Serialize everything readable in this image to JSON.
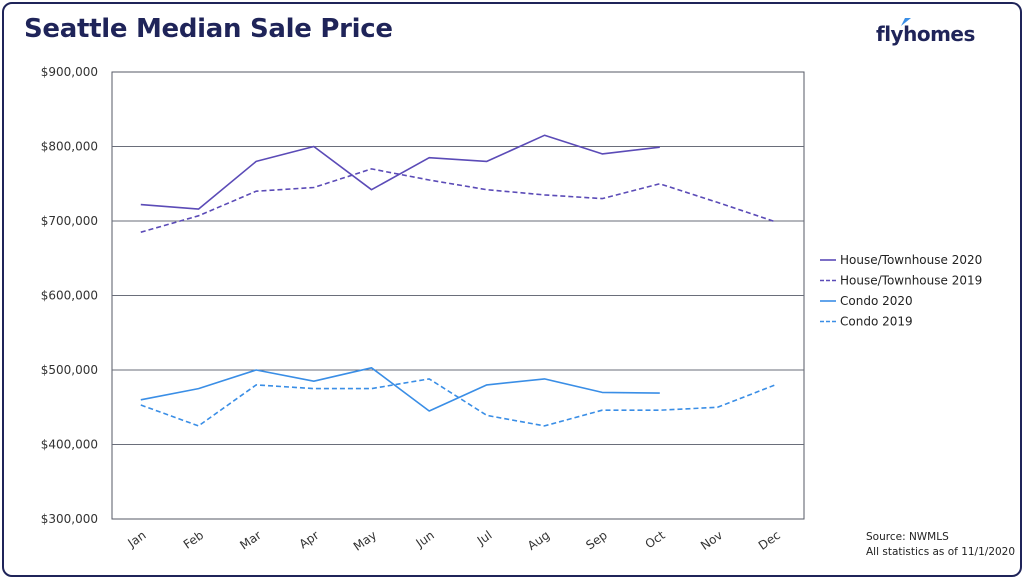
{
  "title": "Seattle Median Sale Price",
  "brand": {
    "name": "flyhomes",
    "color": "#1f2459",
    "accent": "#3a8ee6"
  },
  "footer": {
    "source": "Source: NWMLS",
    "note": "All statistics as of 11/1/2020"
  },
  "chart_data": {
    "type": "line",
    "title": "Seattle Median Sale Price",
    "xlabel": "",
    "ylabel": "",
    "categories": [
      "Jan",
      "Feb",
      "Mar",
      "Apr",
      "May",
      "Jun",
      "Jul",
      "Aug",
      "Sep",
      "Oct",
      "Nov",
      "Dec"
    ],
    "ylim": [
      300000,
      900000
    ],
    "yticks": [
      300000,
      400000,
      500000,
      600000,
      700000,
      800000,
      900000
    ],
    "ytick_labels": [
      "$300,000",
      "$400,000",
      "$500,000",
      "$600,000",
      "$700,000",
      "$800,000",
      "$900,000"
    ],
    "grid": "horizontal",
    "legend_position": "right",
    "series": [
      {
        "name": "House/Townhouse 2020",
        "color": "#5b4bb7",
        "dash": "solid",
        "values": [
          722000,
          716000,
          780000,
          800000,
          742000,
          785000,
          780000,
          815000,
          790000,
          799000,
          null,
          null
        ]
      },
      {
        "name": "House/Townhouse 2019",
        "color": "#5b4bb7",
        "dash": "dashed",
        "values": [
          685000,
          707000,
          740000,
          745000,
          770000,
          755000,
          742000,
          735000,
          730000,
          750000,
          725000,
          699000
        ]
      },
      {
        "name": "Condo 2020",
        "color": "#3a8ee6",
        "dash": "solid",
        "values": [
          460000,
          475000,
          500000,
          485000,
          503000,
          445000,
          480000,
          488000,
          470000,
          469000,
          null,
          null
        ]
      },
      {
        "name": "Condo 2019",
        "color": "#3a8ee6",
        "dash": "dashed",
        "values": [
          453000,
          425000,
          480000,
          475000,
          475000,
          488000,
          439000,
          425000,
          446000,
          446000,
          450000,
          480000
        ]
      }
    ]
  }
}
